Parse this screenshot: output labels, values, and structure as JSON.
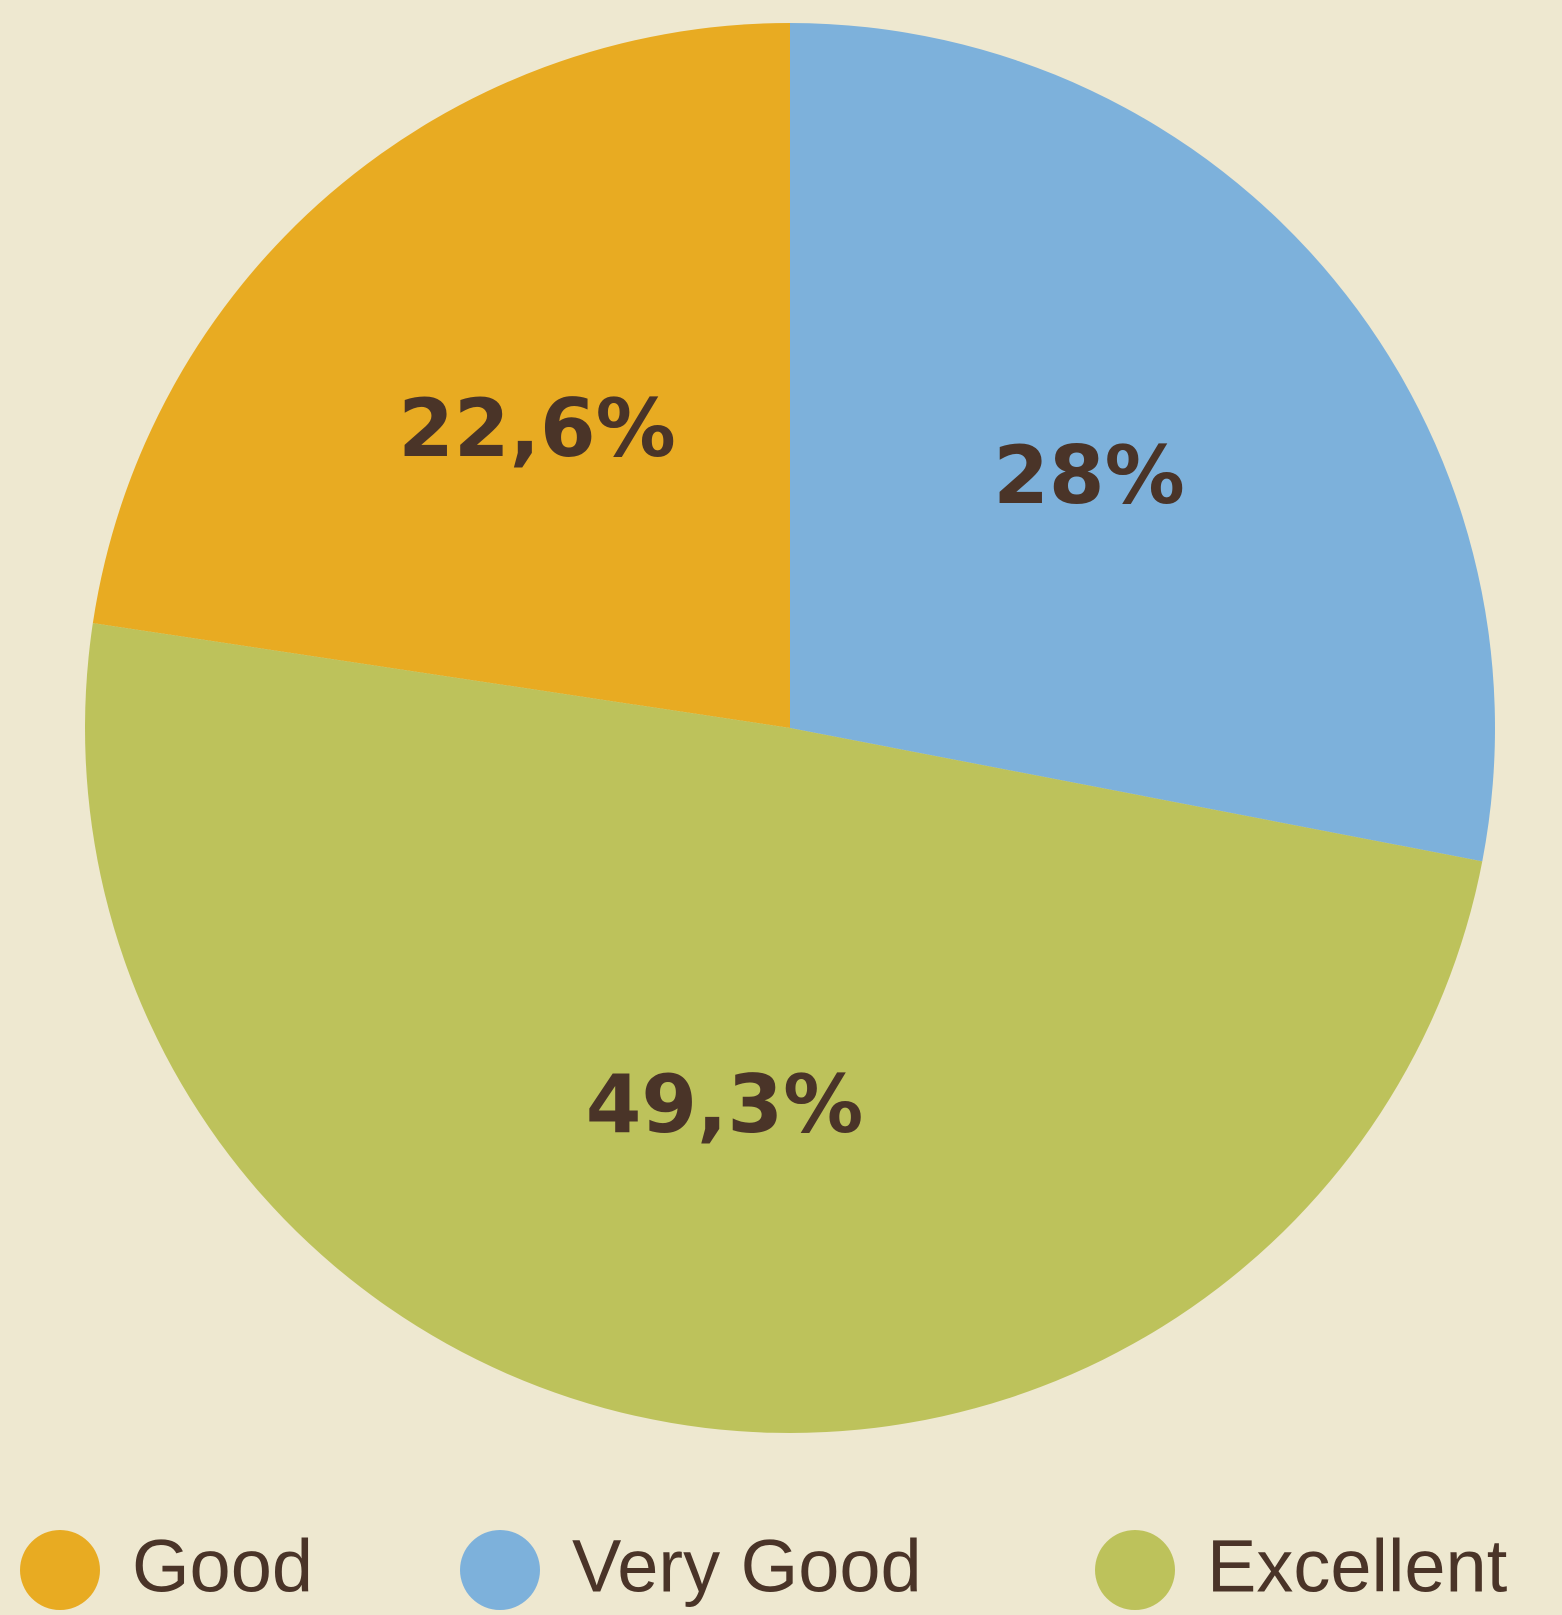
{
  "chart_data": {
    "type": "pie",
    "categories": [
      "Good",
      "Very Good",
      "Excellent"
    ],
    "values": [
      22.6,
      28,
      49.3
    ],
    "value_labels": [
      "22,6%",
      "28%",
      "49,3%"
    ],
    "colors": [
      "#E8AB22",
      "#7DB1DB",
      "#BDC25B"
    ],
    "legend": "bottom"
  }
}
